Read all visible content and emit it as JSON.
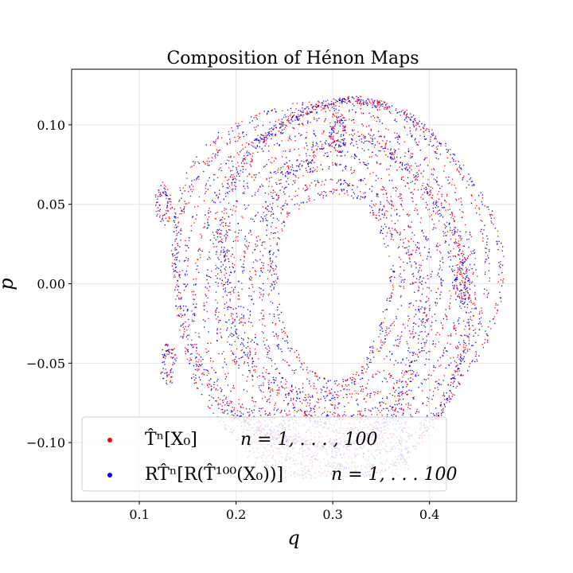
{
  "chart_data": {
    "type": "scatter",
    "title": "Composition of Hénon Maps",
    "xlabel": "q",
    "ylabel": "p",
    "xlim": [
      0.03,
      0.49
    ],
    "ylim": [
      -0.137,
      0.135
    ],
    "xticks": [
      0.1,
      0.2,
      0.3,
      0.4
    ],
    "yticks": [
      0.1,
      0.05,
      0.0,
      -0.05,
      -0.1
    ],
    "xtick_labels": [
      "0.1",
      "0.2",
      "0.3",
      "0.4"
    ],
    "ytick_labels": [
      "0.10",
      "0.05",
      "0.00",
      "−0.05",
      "−0.10"
    ],
    "grid": true,
    "legend_position": "lower-left",
    "center": [
      0.29,
      0.0
    ],
    "series": [
      {
        "legend_label": "T̂ⁿ[X₀]",
        "legend_range": "n = 1, . . . , 100",
        "color": "#ff0000",
        "orbit_radii_q": [
          0.06,
          0.068,
          0.078,
          0.086,
          0.094,
          0.102,
          0.11,
          0.118,
          0.126,
          0.134,
          0.142,
          0.15,
          0.16,
          0.168
        ],
        "orbit_radii_p": [
          0.06,
          0.066,
          0.073,
          0.079,
          0.085,
          0.09,
          0.095,
          0.099,
          0.103,
          0.107,
          0.111,
          0.114,
          0.117,
          0.119
        ],
        "island_centers": [
          [
            0.125,
            0.05
          ],
          [
            0.13,
            -0.05
          ],
          [
            0.432,
            0.0
          ],
          [
            0.305,
            0.095
          ]
        ]
      },
      {
        "legend_label": "RT̂ⁿ[R(T̂¹⁰⁰(X₀))]",
        "legend_range": "n = 1, . . . 100",
        "color": "#0000ff",
        "orbit_radii_q": [
          0.06,
          0.068,
          0.078,
          0.086,
          0.094,
          0.102,
          0.11,
          0.118,
          0.126,
          0.134,
          0.142,
          0.15,
          0.16,
          0.168
        ],
        "orbit_radii_p": [
          0.06,
          0.066,
          0.073,
          0.079,
          0.085,
          0.09,
          0.095,
          0.099,
          0.103,
          0.107,
          0.111,
          0.114,
          0.117,
          0.119
        ],
        "island_centers": [
          [
            0.125,
            0.05
          ],
          [
            0.13,
            -0.05
          ],
          [
            0.432,
            0.0
          ],
          [
            0.305,
            0.095
          ]
        ]
      }
    ]
  }
}
